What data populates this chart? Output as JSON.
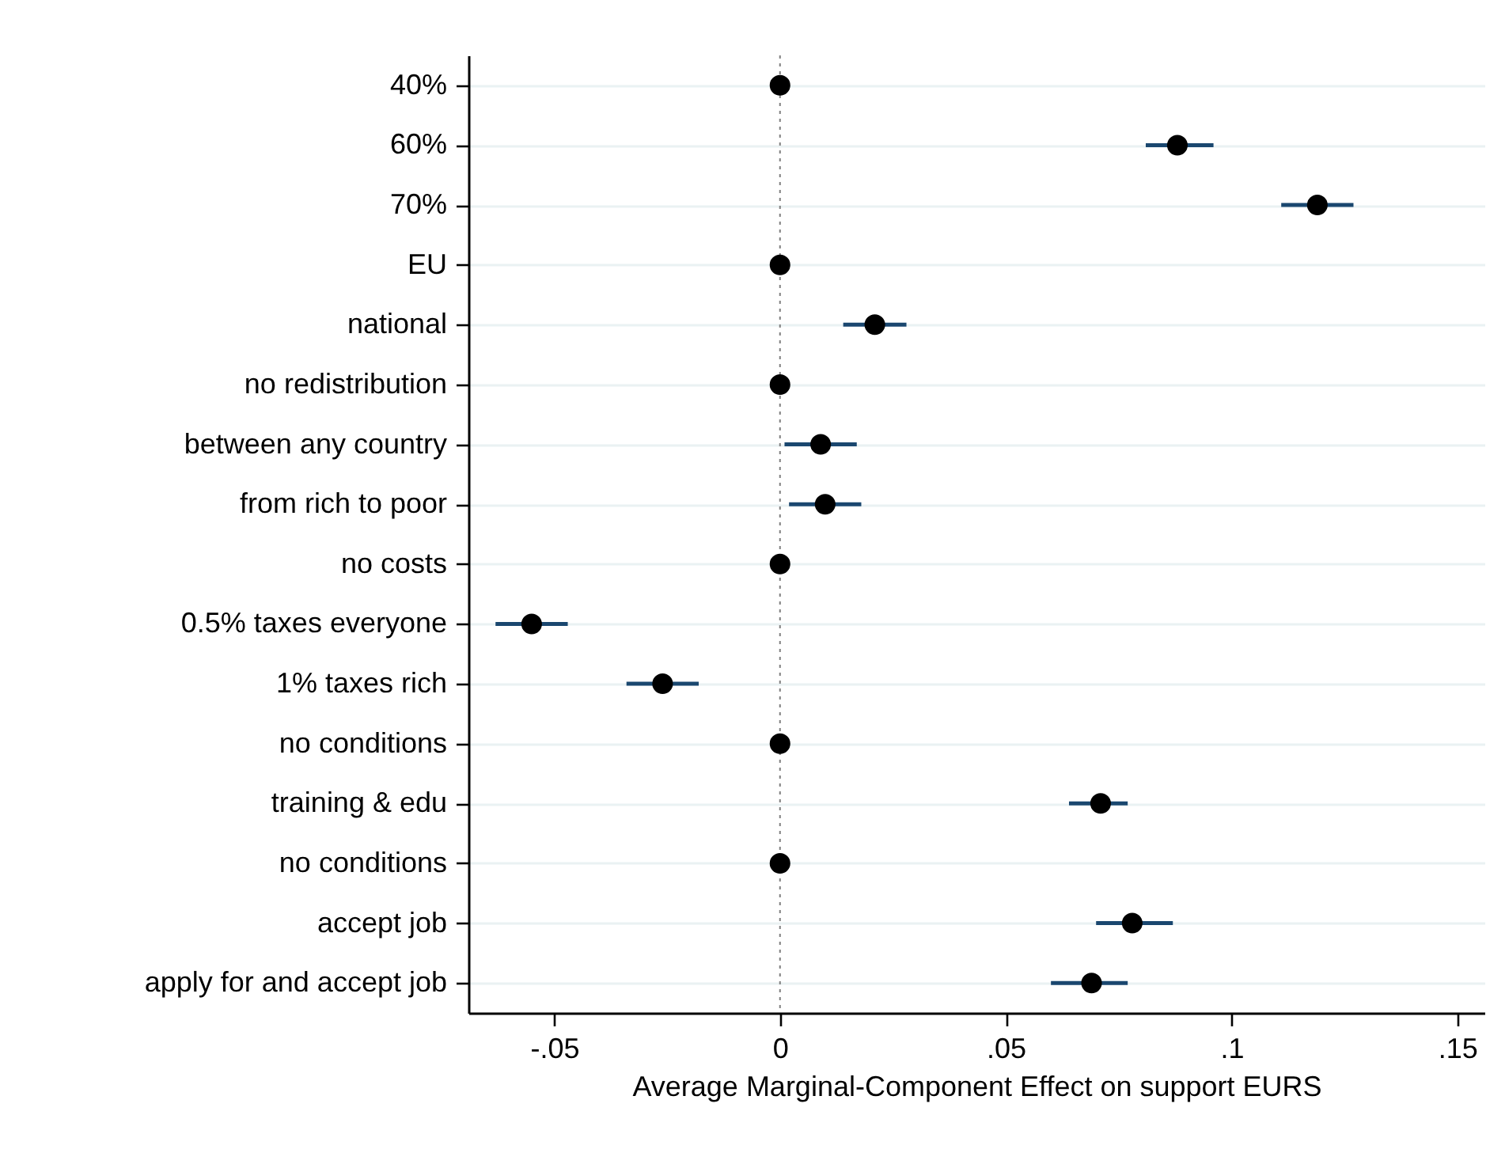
{
  "chart_data": {
    "type": "scatter",
    "orientation": "horizontal",
    "xlabel": "Average Marginal-Component Effect on support EURS",
    "categories": [
      "40%",
      "60%",
      "70%",
      "EU",
      "national",
      "no redistribution",
      "between any country",
      "from rich to poor",
      "no costs",
      "0.5% taxes everyone",
      "1% taxes rich",
      "no conditions",
      "training & edu",
      "no conditions",
      "accept job",
      "apply for and accept job"
    ],
    "values": [
      0,
      0.088,
      0.119,
      0,
      0.021,
      0,
      0.009,
      0.01,
      0,
      -0.055,
      -0.026,
      0,
      0.071,
      0,
      0.078,
      0.069
    ],
    "errors": [
      null,
      [
        0.081,
        0.096
      ],
      [
        0.111,
        0.127
      ],
      null,
      [
        0.014,
        0.028
      ],
      null,
      [
        0.001,
        0.017
      ],
      [
        0.002,
        0.018
      ],
      null,
      [
        -0.063,
        -0.047
      ],
      [
        -0.034,
        -0.018
      ],
      null,
      [
        0.064,
        0.077
      ],
      null,
      [
        0.07,
        0.087
      ],
      [
        0.06,
        0.077
      ]
    ],
    "color": "#000000",
    "marker": "circle",
    "grid": "y",
    "xlim": [
      -0.069,
      0.156
    ],
    "xticks": [
      {
        "value": -0.05,
        "label": "-.05"
      },
      0,
      {
        "value": 0.05,
        "label": ".05"
      },
      {
        "value": 0.1,
        "label": ".1"
      },
      {
        "value": 0.15,
        "label": ".15"
      }
    ],
    "ref_lines": [
      {
        "axis": "x",
        "value": 0,
        "color": "#808080",
        "line_style": "dotted"
      }
    ]
  }
}
